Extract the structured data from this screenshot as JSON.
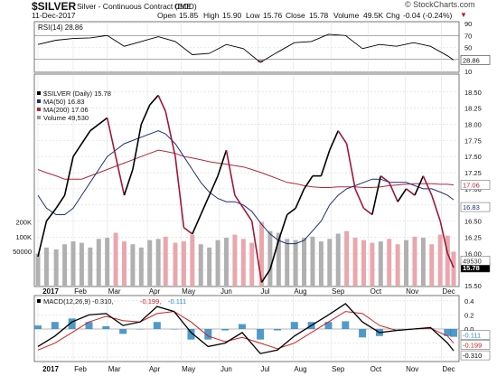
{
  "header": {
    "symbol": "$SILVER",
    "description": "Silver - Continuous Contract (EOD)",
    "exchange": "CME",
    "date": "11-Dec-2017",
    "brand": "© StockCharts.com",
    "quote": {
      "open_label": "Open",
      "open": "15.85",
      "high_label": "High",
      "high": "15.90",
      "low_label": "Low",
      "low": "15.76",
      "close_label": "Close",
      "close": "15.78",
      "volume_label": "Volume",
      "volume": "49.5K",
      "chg_label": "Chg",
      "chg": "-0.04 (-0.24%)",
      "chg_arrow": "▼"
    }
  },
  "colors": {
    "up_price": "#000000",
    "down_price": "#a0183a",
    "ma50": "#1f2e7a",
    "ma200": "#b02838",
    "vol_up": "#b0b0b0",
    "vol_down": "#e9a7ad",
    "rsi_line": "#000000",
    "rsi_fill_low": "#c8869a",
    "macd_line": "#000000",
    "macd_signal": "#d02020",
    "macd_hist": "#2f88bf",
    "grid": "#d9d9d9",
    "current_label_bg": "#000000"
  },
  "chart_data": [
    {
      "type": "line",
      "name": "RSI panel",
      "legend": "RSI(14) 28.86",
      "y_ticks": [
        "90",
        "70",
        "50",
        "30",
        "10"
      ],
      "current_value": "28.86",
      "overbought": 70,
      "oversold": 30,
      "ylim": [
        10,
        90
      ],
      "x": [
        "2017-01-03",
        "2017-01-18",
        "2017-02-01",
        "2017-02-15",
        "2017-03-01",
        "2017-03-15",
        "2017-03-29",
        "2017-04-12",
        "2017-04-26",
        "2017-05-10",
        "2017-05-24",
        "2017-06-07",
        "2017-06-21",
        "2017-07-05",
        "2017-07-19",
        "2017-08-02",
        "2017-08-16",
        "2017-08-30",
        "2017-09-13",
        "2017-09-27",
        "2017-10-11",
        "2017-10-25",
        "2017-11-08",
        "2017-11-22",
        "2017-12-06",
        "2017-12-11"
      ],
      "values": [
        55,
        62,
        65,
        66,
        70,
        52,
        60,
        68,
        60,
        38,
        40,
        55,
        48,
        25,
        42,
        58,
        60,
        72,
        70,
        48,
        55,
        52,
        58,
        52,
        36,
        29
      ]
    },
    {
      "type": "line",
      "name": "Price panel",
      "legend": [
        "$SILVER (Daily) 15.78",
        "MA(50) 16.83",
        "MA(200) 17.06",
        "Volume 49,530"
      ],
      "ylim": [
        15.5,
        18.75
      ],
      "y_ticks": [
        "18.50",
        "18.25",
        "18.00",
        "17.75",
        "17.50",
        "17.25",
        "17.00",
        "16.75",
        "16.50",
        "16.25",
        "16.00",
        "15.75",
        "15.50"
      ],
      "right_labels": [
        "17.06",
        "16.83",
        "15.78",
        "49530"
      ],
      "x_labels": [
        "2017",
        "Feb",
        "Mar",
        "Apr",
        "May",
        "Jun",
        "Jul",
        "Aug",
        "Sep",
        "Oct",
        "Nov",
        "Dec"
      ],
      "volume_ticks": [
        "200K",
        "100K",
        "50000"
      ],
      "x": [
        "2017-01-03",
        "2017-01-10",
        "2017-01-18",
        "2017-01-25",
        "2017-02-01",
        "2017-02-08",
        "2017-02-15",
        "2017-02-22",
        "2017-03-01",
        "2017-03-08",
        "2017-03-15",
        "2017-03-22",
        "2017-03-29",
        "2017-04-05",
        "2017-04-12",
        "2017-04-18",
        "2017-04-26",
        "2017-05-03",
        "2017-05-10",
        "2017-05-17",
        "2017-05-24",
        "2017-05-31",
        "2017-06-07",
        "2017-06-14",
        "2017-06-21",
        "2017-06-28",
        "2017-07-06",
        "2017-07-13",
        "2017-07-20",
        "2017-07-27",
        "2017-08-03",
        "2017-08-10",
        "2017-08-17",
        "2017-08-24",
        "2017-08-31",
        "2017-09-07",
        "2017-09-14",
        "2017-09-21",
        "2017-09-28",
        "2017-10-05",
        "2017-10-12",
        "2017-10-19",
        "2017-10-26",
        "2017-11-02",
        "2017-11-09",
        "2017-11-16",
        "2017-11-23",
        "2017-11-30",
        "2017-12-06",
        "2017-12-11"
      ],
      "series": [
        {
          "name": "$SILVER (Daily)",
          "values": [
            15.95,
            16.5,
            16.7,
            16.9,
            17.5,
            17.7,
            17.9,
            18.0,
            18.1,
            17.5,
            16.9,
            17.3,
            18.0,
            18.3,
            18.45,
            18.2,
            17.5,
            16.4,
            16.3,
            16.6,
            16.9,
            17.2,
            17.6,
            16.9,
            16.7,
            16.5,
            15.55,
            15.75,
            16.2,
            16.6,
            16.7,
            17.0,
            17.2,
            17.2,
            17.6,
            17.9,
            17.7,
            17.0,
            16.7,
            16.6,
            17.2,
            17.1,
            16.8,
            17.0,
            16.9,
            17.2,
            16.9,
            16.5,
            16.0,
            15.78
          ]
        },
        {
          "name": "MA(50)",
          "values": [
            16.9,
            16.7,
            16.6,
            16.6,
            16.7,
            16.9,
            17.1,
            17.3,
            17.5,
            17.6,
            17.7,
            17.75,
            17.8,
            17.85,
            17.9,
            17.85,
            17.7,
            17.5,
            17.3,
            17.1,
            16.95,
            16.85,
            16.8,
            16.8,
            16.75,
            16.65,
            16.45,
            16.3,
            16.2,
            16.15,
            16.15,
            16.2,
            16.35,
            16.5,
            16.75,
            16.9,
            17.0,
            17.05,
            17.1,
            17.15,
            17.15,
            17.1,
            17.1,
            17.1,
            17.05,
            17.0,
            17.0,
            16.95,
            16.9,
            16.83
          ]
        },
        {
          "name": "MA(200)",
          "values": [
            17.3,
            17.25,
            17.2,
            17.15,
            17.15,
            17.15,
            17.2,
            17.25,
            17.3,
            17.35,
            17.4,
            17.45,
            17.5,
            17.55,
            17.6,
            17.58,
            17.55,
            17.5,
            17.48,
            17.45,
            17.42,
            17.4,
            17.38,
            17.36,
            17.34,
            17.3,
            17.25,
            17.2,
            17.15,
            17.1,
            17.08,
            17.05,
            17.03,
            17.02,
            17.02,
            17.03,
            17.03,
            17.03,
            17.02,
            17.02,
            17.03,
            17.05,
            17.06,
            17.07,
            17.08,
            17.08,
            17.08,
            17.07,
            17.07,
            17.06
          ]
        },
        {
          "name": "Volume",
          "values": [
            45000,
            60000,
            55000,
            70000,
            80000,
            75000,
            60000,
            90000,
            95000,
            120000,
            80000,
            70000,
            60000,
            85000,
            90000,
            100000,
            75000,
            80000,
            110000,
            70000,
            60000,
            85000,
            95000,
            110000,
            90000,
            75000,
            200000,
            130000,
            120000,
            90000,
            85000,
            95000,
            100000,
            80000,
            90000,
            115000,
            130000,
            95000,
            85000,
            75000,
            80000,
            90000,
            70000,
            85000,
            100000,
            95000,
            70000,
            110000,
            105000,
            49530
          ]
        }
      ]
    },
    {
      "type": "line",
      "name": "MACD panel",
      "legend": [
        "MACD(12,26,9)",
        "-0.310",
        "-0.199",
        "-0.111"
      ],
      "y_ticks": [
        "0.4",
        "0.2",
        "0.0",
        "-0.2",
        "-0.4"
      ],
      "right_labels": [
        "-0.111",
        "-0.199",
        "-0.310"
      ],
      "ylim": [
        -0.45,
        0.45
      ],
      "x": [
        "2017-01-03",
        "2017-01-17",
        "2017-01-31",
        "2017-02-14",
        "2017-02-28",
        "2017-03-14",
        "2017-03-28",
        "2017-04-11",
        "2017-04-25",
        "2017-05-09",
        "2017-05-23",
        "2017-06-06",
        "2017-06-20",
        "2017-07-05",
        "2017-07-19",
        "2017-08-02",
        "2017-08-16",
        "2017-08-30",
        "2017-09-13",
        "2017-09-27",
        "2017-10-11",
        "2017-10-25",
        "2017-11-08",
        "2017-11-22",
        "2017-12-06",
        "2017-12-11"
      ],
      "series": [
        {
          "name": "MACD",
          "values": [
            -0.25,
            -0.1,
            0.1,
            0.2,
            0.22,
            0.05,
            0.1,
            0.32,
            0.25,
            -0.05,
            -0.25,
            -0.2,
            -0.05,
            -0.35,
            -0.3,
            -0.1,
            0.05,
            0.2,
            0.36,
            0.1,
            -0.05,
            -0.02,
            0.0,
            0.02,
            -0.2,
            -0.31
          ]
        },
        {
          "name": "Signal",
          "values": [
            -0.3,
            -0.2,
            -0.05,
            0.1,
            0.18,
            0.12,
            0.1,
            0.22,
            0.25,
            0.1,
            -0.1,
            -0.18,
            -0.12,
            -0.2,
            -0.28,
            -0.2,
            -0.05,
            0.1,
            0.25,
            0.22,
            0.05,
            -0.02,
            0.0,
            0.01,
            -0.1,
            -0.2
          ]
        },
        {
          "name": "Histogram",
          "values": [
            0.05,
            0.1,
            0.15,
            0.1,
            0.04,
            -0.07,
            0.0,
            0.1,
            0.0,
            -0.15,
            -0.15,
            -0.02,
            0.07,
            -0.15,
            -0.02,
            0.1,
            0.1,
            0.1,
            0.11,
            -0.12,
            -0.1,
            0.0,
            0.0,
            0.01,
            -0.1,
            -0.111
          ]
        }
      ]
    }
  ]
}
